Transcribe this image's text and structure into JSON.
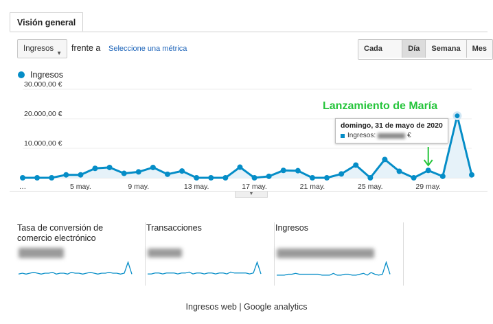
{
  "tab": {
    "label": "Visión general"
  },
  "controls": {
    "metric_selected": "Ingresos",
    "compare_label": "frente a",
    "compare_link": "Seleccione una métrica",
    "granularity": [
      {
        "label": "Cada hora",
        "active": false
      },
      {
        "label": "Día",
        "active": true
      },
      {
        "label": "Semana",
        "active": false
      },
      {
        "label": "Mes",
        "active": false
      }
    ]
  },
  "colors": {
    "series": "#058dc7",
    "annotation": "#24c43a",
    "link": "#1a62b8"
  },
  "chart_data": {
    "type": "line",
    "series": [
      {
        "name": "Ingresos",
        "values": [
          0,
          0,
          0,
          1000,
          1000,
          3200,
          3500,
          1500,
          2000,
          3500,
          1200,
          2300,
          0,
          0,
          0,
          3600,
          0,
          500,
          2500,
          2400,
          0,
          0,
          1300,
          4300,
          0,
          6200,
          2200,
          0,
          2500,
          500,
          21000,
          1000
        ]
      }
    ],
    "x_tick_labels": [
      "…",
      "5 may.",
      "9 may.",
      "13 may.",
      "17 may.",
      "21 may.",
      "25 may.",
      "29 may."
    ],
    "y_tick_labels": [
      "10.000,00 €",
      "20.000,00 €",
      "30.000,00 €"
    ],
    "y_tick_values": [
      10000,
      20000,
      30000
    ],
    "ylim": [
      0,
      30000
    ],
    "legend": "top-left",
    "grid": true,
    "annotation": "Lanzamiento de María",
    "annotation_index": 28,
    "tooltip": {
      "date": "domingo, 31 de mayo de 2020",
      "label": "Ingresos:",
      "unit": "€"
    }
  },
  "cards": [
    {
      "title": "Tasa de conversión de comercio electrónico",
      "spark": [
        2,
        3,
        2,
        3,
        4,
        3,
        2,
        3,
        3,
        4,
        2,
        3,
        3,
        2,
        4,
        3,
        3,
        2,
        3,
        4,
        3,
        2,
        3,
        3,
        4,
        3,
        3,
        2,
        3,
        15,
        2
      ]
    },
    {
      "title": "Transacciones",
      "spark": [
        2,
        2,
        3,
        3,
        2,
        3,
        3,
        3,
        2,
        3,
        3,
        4,
        2,
        3,
        3,
        2,
        3,
        3,
        2,
        3,
        3,
        2,
        4,
        3,
        3,
        3,
        3,
        2,
        3,
        14,
        2
      ]
    },
    {
      "title": "Ingresos",
      "spark": [
        1,
        1,
        1,
        2,
        2,
        3,
        2,
        2,
        2,
        2,
        2,
        2,
        1,
        1,
        1,
        3,
        1,
        1,
        2,
        2,
        1,
        1,
        2,
        3,
        1,
        4,
        2,
        1,
        2,
        16,
        2
      ]
    }
  ],
  "caption": "Ingresos web | Google analytics"
}
